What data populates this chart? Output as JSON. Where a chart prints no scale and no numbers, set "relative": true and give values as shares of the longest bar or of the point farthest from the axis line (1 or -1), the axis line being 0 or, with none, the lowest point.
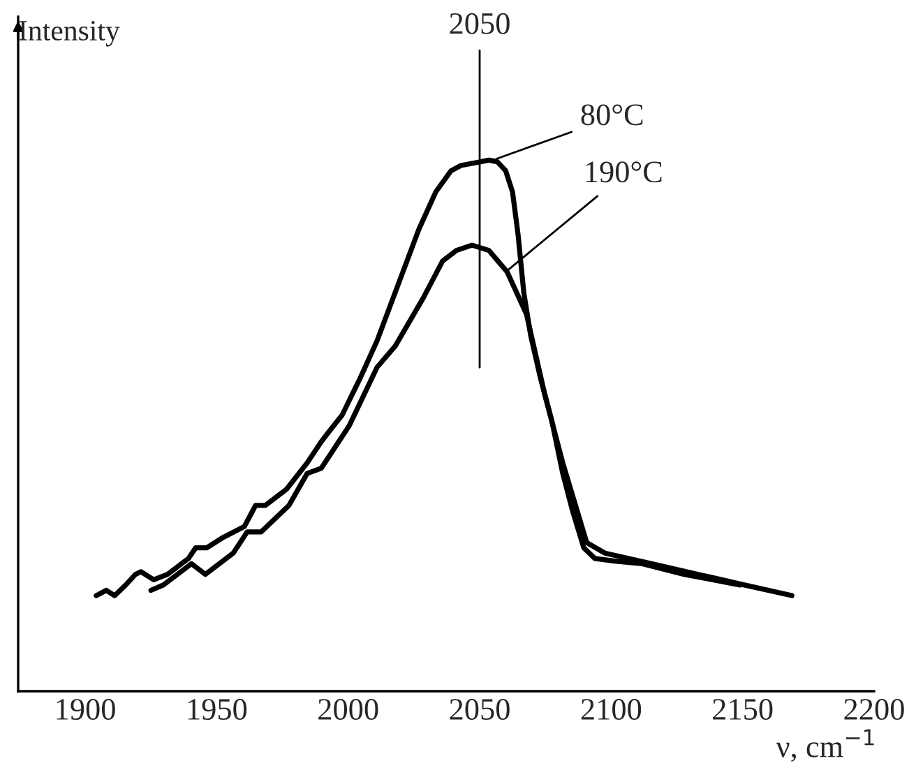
{
  "chart_data": {
    "type": "line",
    "relative": true,
    "xlabel": "ν, cm$^{−1}$",
    "ylabel": "Intensity",
    "xlim": [
      1874.5,
      2200
    ],
    "xticks": [
      1900,
      1950,
      2000,
      2050,
      2100,
      2150,
      2200
    ],
    "tick_labels": "x",
    "grid": false,
    "legend": false,
    "marker": "none",
    "line_style": "solid",
    "series": [
      {
        "color": "#000000",
        "x": [
          1904.2,
          1908.0,
          1911.2,
          1915.4,
          1919.1,
          1921.2,
          1926.0,
          1931.3,
          1936.6,
          1939.3,
          1942.0,
          1946.2,
          1952.6,
          1960.5,
          1964.8,
          1968.5,
          1976.5,
          1984.4,
          1989.8,
          1992.9,
          1997.7,
          2004.6,
          2011.0,
          2016.3,
          2021.6,
          2026.9,
          2033.3,
          2039.1,
          2042.9,
          2048.2,
          2053.5,
          2056.7,
          2059.9,
          2062.5,
          2064.6,
          2066.8,
          2069.4,
          2073.1,
          2077.4,
          2081.6,
          2085.3,
          2089.6,
          2093.8,
          2101.3,
          2111.9,
          2127.8,
          2138.4,
          2149.0
        ],
        "values": [
          0.18,
          0.19,
          0.18,
          0.2,
          0.22,
          0.225,
          0.21,
          0.22,
          0.24,
          0.25,
          0.27,
          0.27,
          0.29,
          0.31,
          0.35,
          0.35,
          0.38,
          0.43,
          0.47,
          0.49,
          0.52,
          0.59,
          0.66,
          0.73,
          0.8,
          0.87,
          0.94,
          0.98,
          0.99,
          0.995,
          1,
          0.997,
          0.98,
          0.94,
          0.86,
          0.75,
          0.67,
          0.59,
          0.51,
          0.41,
          0.34,
          0.27,
          0.25,
          0.245,
          0.24,
          0.22,
          0.21,
          0.2
        ]
      },
      {
        "color": "#000000",
        "x": [
          1925.0,
          1929.7,
          1940.4,
          1945.7,
          1956.3,
          1961.6,
          1966.9,
          1977.5,
          1984.4,
          1989.8,
          2000.4,
          2011.0,
          2017.9,
          2028.5,
          2035.9,
          2041.2,
          2047.1,
          2053.5,
          2060.4,
          2067.8,
          2074.7,
          2081.6,
          2090.7,
          2097.6,
          2115.6,
          2133.1,
          2150.7,
          2168.7
        ],
        "values": [
          0.19,
          0.2,
          0.24,
          0.22,
          0.26,
          0.3,
          0.3,
          0.35,
          0.41,
          0.42,
          0.5,
          0.61,
          0.65,
          0.74,
          0.81,
          0.83,
          0.84,
          0.83,
          0.79,
          0.71,
          0.56,
          0.43,
          0.28,
          0.26,
          0.24,
          0.22,
          0.2,
          0.18
        ]
      }
    ],
    "ref_lines": [
      {
        "axis": "x",
        "value": 2050,
        "label": "2050"
      }
    ],
    "annotations": [
      {
        "text": "80°C",
        "x": 2055,
        "y": 1.0
      },
      {
        "text": "190°C",
        "x": 2060,
        "y": 0.79
      }
    ]
  }
}
